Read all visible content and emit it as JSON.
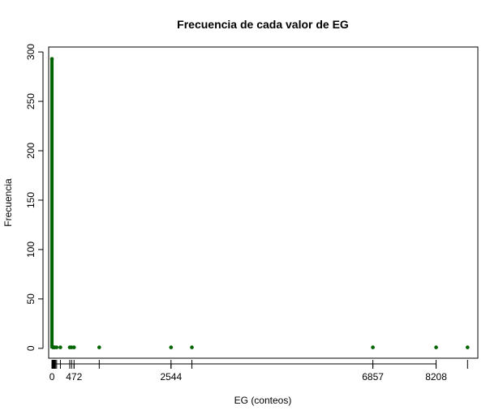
{
  "chart_data": {
    "type": "scatter",
    "title": "Frecuencia de cada valor de EG",
    "xlabel": "EG (conteos)",
    "ylabel": "Frecuencia",
    "xlim": [
      -70,
      9100
    ],
    "ylim": [
      -10,
      305
    ],
    "x_ticks": [
      {
        "value": 0,
        "label": "0"
      },
      {
        "value": 472,
        "label": "472"
      },
      {
        "value": 2544,
        "label": "2544"
      },
      {
        "value": 6857,
        "label": "6857"
      },
      {
        "value": 8208,
        "label": "8208"
      }
    ],
    "y_ticks": [
      {
        "value": 0,
        "label": "0"
      },
      {
        "value": 50,
        "label": "50"
      },
      {
        "value": 100,
        "label": "100"
      },
      {
        "value": 150,
        "label": "150"
      },
      {
        "value": 200,
        "label": "200"
      },
      {
        "value": 250,
        "label": "250"
      },
      {
        "value": 300,
        "label": "300"
      }
    ],
    "rug_x": [
      0,
      10,
      20,
      30,
      40,
      50,
      60,
      75,
      100,
      180,
      380,
      420,
      472,
      1010,
      2544,
      2990,
      6857,
      8208,
      8880
    ],
    "spike": {
      "x": 0,
      "y": 293
    },
    "points": [
      {
        "x": 0,
        "y": 293
      },
      {
        "x": 20,
        "y": 1
      },
      {
        "x": 40,
        "y": 1
      },
      {
        "x": 60,
        "y": 1
      },
      {
        "x": 100,
        "y": 1
      },
      {
        "x": 180,
        "y": 1
      },
      {
        "x": 380,
        "y": 1
      },
      {
        "x": 420,
        "y": 1
      },
      {
        "x": 472,
        "y": 1
      },
      {
        "x": 1010,
        "y": 1
      },
      {
        "x": 2544,
        "y": 1
      },
      {
        "x": 2990,
        "y": 1
      },
      {
        "x": 6857,
        "y": 1
      },
      {
        "x": 8208,
        "y": 1
      },
      {
        "x": 8880,
        "y": 1
      }
    ],
    "color": "#006400",
    "grid": false
  }
}
